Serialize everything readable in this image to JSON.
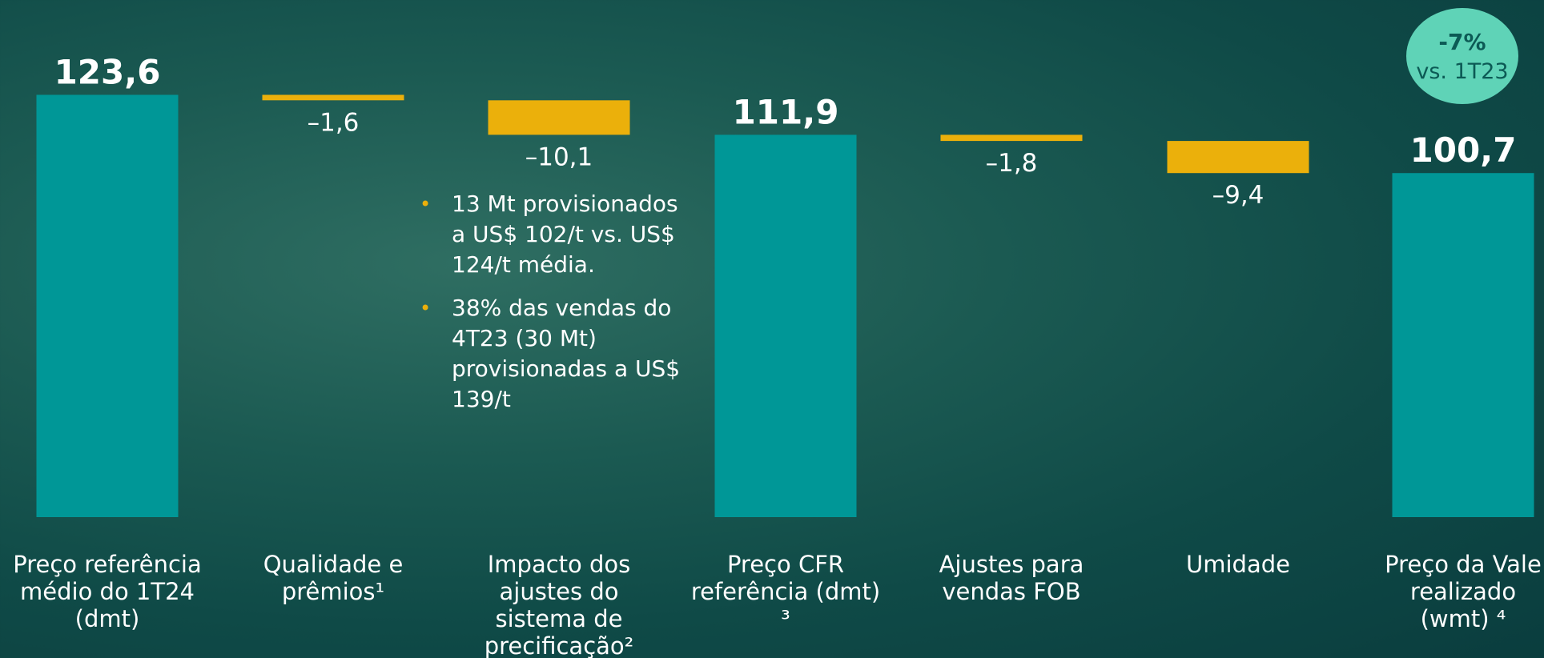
{
  "chart_data": {
    "type": "waterfall",
    "categories": [
      "Preço referência médio do 1T24 (dmt)",
      "Qualidade e prêmios¹",
      "Impacto dos ajustes do sistema de precificação²",
      "Preço CFR referência (dmt) ³",
      "Ajustes para vendas FOB",
      "Umidade",
      "Preço da Vale realizado (wmt) ⁴"
    ],
    "values": [
      123.6,
      -1.6,
      -10.1,
      111.9,
      -1.8,
      -9.4,
      100.7
    ],
    "value_labels": [
      "123,6",
      "–1,6",
      "–10,1",
      "111,9",
      "–1,8",
      "–9,4",
      "100,7"
    ],
    "totals": [
      true,
      false,
      false,
      true,
      false,
      false,
      true
    ],
    "total_color": "#009797",
    "decrease_color": "#ebb00b",
    "bullets": [
      "13 Mt provisionados a US$ 102/t vs. US$ 124/t média.",
      "38% das vendas do 4T23 (30 Mt) provisionadas a US$ 139/t"
    ],
    "badge": {
      "value": "-7%",
      "label": "vs. 1T23"
    }
  }
}
